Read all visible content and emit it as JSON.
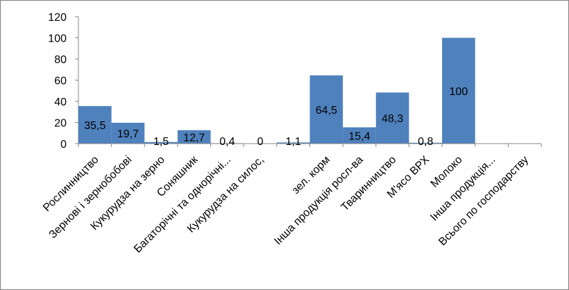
{
  "chart_data": {
    "type": "bar",
    "categories": [
      "Рослинництво",
      "Зернові і зернобобові",
      "Кукурудза на зерно",
      "Соняшник",
      "Багаторічні та однорічні...",
      "Кукурудза на силос,",
      "",
      "зел. корм",
      "Інша продукція росл-ва",
      "Тваринництво",
      "М'ясо ВРХ",
      "Молоко",
      "Інша продукція...",
      "Всього по господарству"
    ],
    "values": [
      35.5,
      19.7,
      1.5,
      12.7,
      0.4,
      0,
      1.1,
      64.5,
      15.4,
      48.3,
      0.8,
      100,
      null,
      null
    ],
    "data_labels": [
      "35,5",
      "19,7",
      "1,5",
      "12,7",
      "0,4",
      "0",
      "1,1",
      "64,5",
      "15,4",
      "48,3",
      "0,8",
      "100",
      "",
      ""
    ],
    "ylim": [
      0,
      120
    ],
    "yticks": [
      "0",
      "20",
      "40",
      "60",
      "80",
      "100",
      "120"
    ],
    "bar_color": "#4f81bd",
    "grid": false,
    "legend": "none"
  }
}
